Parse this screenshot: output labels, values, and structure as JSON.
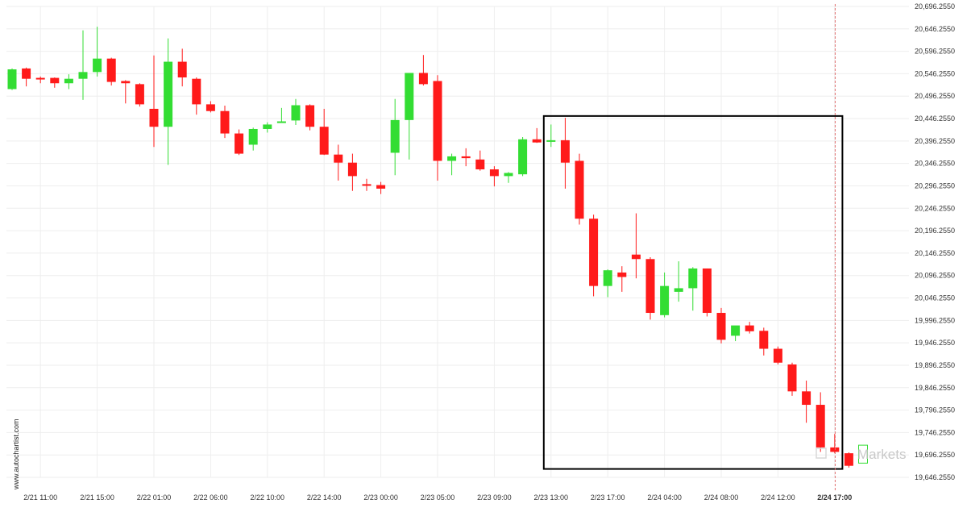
{
  "chart_data": {
    "type": "candlestick",
    "title": "",
    "xlabel": "",
    "ylabel": "",
    "ylim": [
      19646.255,
      20696.255
    ],
    "y_ticks": [
      "20,696.2550",
      "20,646.2550",
      "20,596.2550",
      "20,546.2550",
      "20,496.2550",
      "20,446.2550",
      "20,396.2550",
      "20,346.2550",
      "20,296.2550",
      "20,246.2550",
      "20,196.2550",
      "20,146.2550",
      "20,096.2550",
      "20,046.2550",
      "19,996.2550",
      "19,946.2550",
      "19,896.2550",
      "19,846.2550",
      "19,796.2550",
      "19,746.2550",
      "19,696.2550",
      "19,646.2550"
    ],
    "x_ticks": [
      {
        "label": "2/21 11:00",
        "index": 2
      },
      {
        "label": "2/21 15:00",
        "index": 6
      },
      {
        "label": "2/22 01:00",
        "index": 10
      },
      {
        "label": "2/22 06:00",
        "index": 14
      },
      {
        "label": "2/22 10:00",
        "index": 18
      },
      {
        "label": "2/22 14:00",
        "index": 22
      },
      {
        "label": "2/23 00:00",
        "index": 26
      },
      {
        "label": "2/23 05:00",
        "index": 30
      },
      {
        "label": "2/23 09:00",
        "index": 34
      },
      {
        "label": "2/23 13:00",
        "index": 38
      },
      {
        "label": "2/23 17:00",
        "index": 42
      },
      {
        "label": "2/24 04:00",
        "index": 46
      },
      {
        "label": "2/24 08:00",
        "index": 50
      },
      {
        "label": "2/24 12:00",
        "index": 54
      },
      {
        "label": "2/24 17:00",
        "index": 58,
        "bold": true
      }
    ],
    "candles": [
      {
        "o": 20512,
        "h": 20558,
        "l": 20510,
        "c": 20556
      },
      {
        "o": 20558,
        "h": 20560,
        "l": 20518,
        "c": 20535
      },
      {
        "o": 20537,
        "h": 20540,
        "l": 20525,
        "c": 20535
      },
      {
        "o": 20537,
        "h": 20538,
        "l": 20515,
        "c": 20525
      },
      {
        "o": 20525,
        "h": 20545,
        "l": 20512,
        "c": 20535
      },
      {
        "o": 20535,
        "h": 20643,
        "l": 20488,
        "c": 20550
      },
      {
        "o": 20550,
        "h": 20651,
        "l": 20540,
        "c": 20580
      },
      {
        "o": 20580,
        "h": 20582,
        "l": 20520,
        "c": 20528
      },
      {
        "o": 20530,
        "h": 20532,
        "l": 20480,
        "c": 20525
      },
      {
        "o": 20523,
        "h": 20525,
        "l": 20473,
        "c": 20478
      },
      {
        "o": 20468,
        "h": 20587,
        "l": 20383,
        "c": 20428
      },
      {
        "o": 20428,
        "h": 20625,
        "l": 20343,
        "c": 20573
      },
      {
        "o": 20573,
        "h": 20602,
        "l": 20518,
        "c": 20538
      },
      {
        "o": 20535,
        "h": 20538,
        "l": 20455,
        "c": 20478
      },
      {
        "o": 20478,
        "h": 20485,
        "l": 20460,
        "c": 20463
      },
      {
        "o": 20463,
        "h": 20475,
        "l": 20403,
        "c": 20413
      },
      {
        "o": 20413,
        "h": 20422,
        "l": 20365,
        "c": 20368
      },
      {
        "o": 20388,
        "h": 20426,
        "l": 20375,
        "c": 20423
      },
      {
        "o": 20423,
        "h": 20438,
        "l": 20415,
        "c": 20433
      },
      {
        "o": 20438,
        "h": 20470,
        "l": 20437,
        "c": 20440
      },
      {
        "o": 20442,
        "h": 20490,
        "l": 20432,
        "c": 20476
      },
      {
        "o": 20476,
        "h": 20478,
        "l": 20420,
        "c": 20428
      },
      {
        "o": 20428,
        "h": 20468,
        "l": 20365,
        "c": 20366
      },
      {
        "o": 20366,
        "h": 20388,
        "l": 20308,
        "c": 20348
      },
      {
        "o": 20348,
        "h": 20368,
        "l": 20285,
        "c": 20318
      },
      {
        "o": 20300,
        "h": 20312,
        "l": 20285,
        "c": 20298
      },
      {
        "o": 20298,
        "h": 20305,
        "l": 20278,
        "c": 20290
      },
      {
        "o": 20370,
        "h": 20490,
        "l": 20320,
        "c": 20443
      },
      {
        "o": 20443,
        "h": 20548,
        "l": 20355,
        "c": 20548
      },
      {
        "o": 20548,
        "h": 20588,
        "l": 20520,
        "c": 20523
      },
      {
        "o": 20530,
        "h": 20543,
        "l": 20308,
        "c": 20352
      },
      {
        "o": 20352,
        "h": 20368,
        "l": 20320,
        "c": 20362
      },
      {
        "o": 20362,
        "h": 20380,
        "l": 20340,
        "c": 20358
      },
      {
        "o": 20355,
        "h": 20375,
        "l": 20330,
        "c": 20333
      },
      {
        "o": 20333,
        "h": 20340,
        "l": 20295,
        "c": 20318
      },
      {
        "o": 20318,
        "h": 20327,
        "l": 20303,
        "c": 20325
      },
      {
        "o": 20322,
        "h": 20405,
        "l": 20318,
        "c": 20400
      },
      {
        "o": 20400,
        "h": 20425,
        "l": 20392,
        "c": 20393
      },
      {
        "o": 20398,
        "h": 20433,
        "l": 20383,
        "c": 20398
      },
      {
        "o": 20398,
        "h": 20448,
        "l": 20290,
        "c": 20348
      },
      {
        "o": 20352,
        "h": 20368,
        "l": 20210,
        "c": 20223
      },
      {
        "o": 20223,
        "h": 20232,
        "l": 20050,
        "c": 20073
      },
      {
        "o": 20073,
        "h": 20110,
        "l": 20048,
        "c": 20108
      },
      {
        "o": 20103,
        "h": 20117,
        "l": 20060,
        "c": 20093
      },
      {
        "o": 20143,
        "h": 20235,
        "l": 20090,
        "c": 20133
      },
      {
        "o": 20133,
        "h": 20137,
        "l": 19998,
        "c": 20013
      },
      {
        "o": 20008,
        "h": 20103,
        "l": 20003,
        "c": 20073
      },
      {
        "o": 20060,
        "h": 20128,
        "l": 20038,
        "c": 20068
      },
      {
        "o": 20068,
        "h": 20115,
        "l": 20018,
        "c": 20112
      },
      {
        "o": 20112,
        "h": 20112,
        "l": 20005,
        "c": 20013
      },
      {
        "o": 20013,
        "h": 20024,
        "l": 19945,
        "c": 19953
      },
      {
        "o": 19962,
        "h": 19983,
        "l": 19950,
        "c": 19985
      },
      {
        "o": 19985,
        "h": 19993,
        "l": 19967,
        "c": 19972
      },
      {
        "o": 19973,
        "h": 19980,
        "l": 19918,
        "c": 19933
      },
      {
        "o": 19933,
        "h": 19938,
        "l": 19898,
        "c": 19902
      },
      {
        "o": 19898,
        "h": 19902,
        "l": 19828,
        "c": 19838
      },
      {
        "o": 19838,
        "h": 19862,
        "l": 19768,
        "c": 19808
      },
      {
        "o": 19808,
        "h": 19836,
        "l": 19703,
        "c": 19713
      },
      {
        "o": 19713,
        "h": 19743,
        "l": 19700,
        "c": 19703
      },
      {
        "o": 19700,
        "h": 19702,
        "l": 19668,
        "c": 19672
      },
      {
        "o": 19678,
        "h": 19718,
        "l": 19678,
        "c": 19718,
        "outline": true
      }
    ],
    "highlight_box": {
      "start_index": 38,
      "end_index": 59,
      "top": 20452,
      "bottom": 19665
    },
    "vertical_marker_index": 59,
    "colors": {
      "up": "#33dd33",
      "down": "#ff1a1a",
      "grid": "#eeeeee",
      "box": "#000000",
      "marker": "#e07070"
    }
  },
  "watermarks": {
    "side_text": "www.autochartist.com",
    "brand_text": "Markets"
  }
}
